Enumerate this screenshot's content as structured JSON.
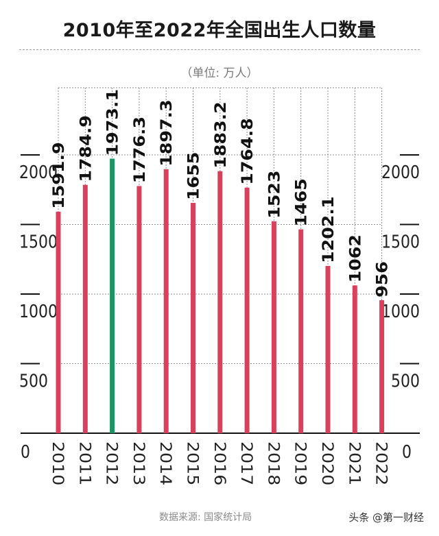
{
  "chart_data": {
    "type": "bar",
    "title": "2010年至2022年全国出生人口数量",
    "unit_label": "（单位: 万人）",
    "categories": [
      "2010",
      "2011",
      "2012",
      "2013",
      "2014",
      "2015",
      "2016",
      "2017",
      "2018",
      "2019",
      "2020",
      "2021",
      "2022"
    ],
    "values": [
      1591.9,
      1784.9,
      1973.1,
      1776.3,
      1897.3,
      1655,
      1883.2,
      1764.8,
      1523,
      1465,
      1202.1,
      1062,
      956
    ],
    "value_labels": [
      "1591.9",
      "1784.9",
      "1973.1",
      "1776.3",
      "1897.3",
      "1655",
      "1883.2",
      "1764.8",
      "1523",
      "1465",
      "1202.1",
      "1062",
      "956"
    ],
    "highlight_index": 2,
    "colors": {
      "bar": "#d9405c",
      "highlight": "#1a9462",
      "highlight_label": "#1a9462",
      "grid": "#8c8c8c"
    },
    "y_ticks": [
      0,
      500,
      1000,
      1500,
      2000
    ],
    "y_tick_labels": [
      "0",
      "500",
      "1000",
      "1500",
      "2000"
    ],
    "ylim": [
      0,
      2000
    ],
    "grid": true,
    "source": "数据来源: 国家统计局",
    "watermark": "头条 @第一财经"
  }
}
